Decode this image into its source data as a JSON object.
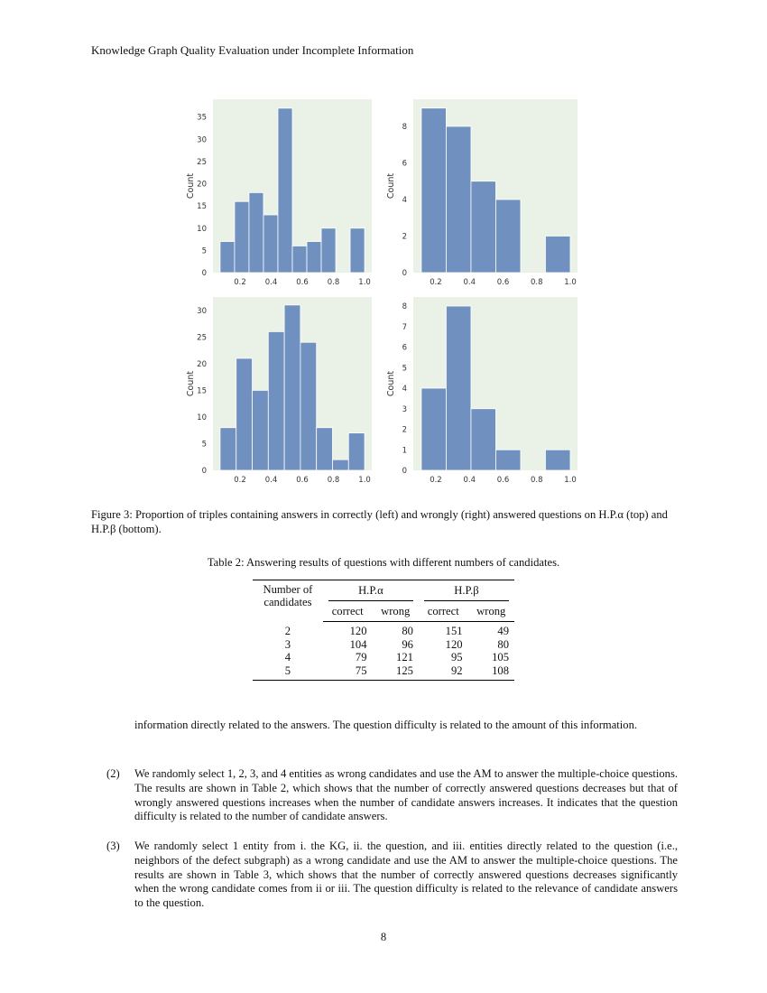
{
  "header": {
    "running_title": "Knowledge Graph Quality Evaluation under Incomplete Information"
  },
  "chart_data": [
    {
      "type": "bar",
      "panel": "top-left",
      "ylabel": "Count",
      "xlim": [
        0.026,
        1.046
      ],
      "ylim": [
        0,
        39
      ],
      "x_ticks": [
        "0.2",
        "0.4",
        "0.6",
        "0.8",
        "1.0"
      ],
      "y_ticks": [
        "0",
        "5",
        "10",
        "15",
        "20",
        "25",
        "30",
        "35"
      ],
      "bin_range": [
        0.072,
        1.0
      ],
      "counts": [
        7,
        16,
        18,
        13,
        37,
        6,
        7,
        10,
        0,
        10
      ],
      "grid": false,
      "background": "#eaf2e8",
      "bar_color": "#7090bf"
    },
    {
      "type": "bar",
      "panel": "top-right",
      "ylabel": "Count",
      "xlim": [
        0.066,
        1.043
      ],
      "ylim": [
        0,
        9.48
      ],
      "x_ticks": [
        "0.2",
        "0.4",
        "0.6",
        "0.8",
        "1.0"
      ],
      "y_ticks": [
        "0",
        "2",
        "4",
        "6",
        "8"
      ],
      "bin_range": [
        0.114,
        1.0
      ],
      "counts": [
        9,
        8,
        5,
        4,
        0,
        2
      ],
      "grid": false,
      "background": "#eaf2e8",
      "bar_color": "#7090bf"
    },
    {
      "type": "bar",
      "panel": "bottom-left",
      "ylabel": "Count",
      "xlim": [
        0.026,
        1.046
      ],
      "ylim": [
        0,
        32.5
      ],
      "x_ticks": [
        "0.2",
        "0.4",
        "0.6",
        "0.8",
        "1.0"
      ],
      "y_ticks": [
        "0",
        "5",
        "10",
        "15",
        "20",
        "25",
        "30"
      ],
      "bin_range": [
        0.072,
        1.0
      ],
      "counts": [
        8,
        21,
        15,
        26,
        31,
        24,
        8,
        2,
        7
      ],
      "grid": false,
      "background": "#eaf2e8",
      "bar_color": "#7090bf"
    },
    {
      "type": "bar",
      "panel": "bottom-right",
      "ylabel": "Count",
      "xlim": [
        0.066,
        1.043
      ],
      "ylim": [
        0,
        8.44
      ],
      "x_ticks": [
        "0.2",
        "0.4",
        "0.6",
        "0.8",
        "1.0"
      ],
      "y_ticks": [
        "0",
        "1",
        "2",
        "3",
        "4",
        "5",
        "6",
        "7",
        "8"
      ],
      "bin_range": [
        0.114,
        1.0
      ],
      "counts": [
        4,
        8,
        3,
        1,
        0,
        1
      ],
      "grid": false,
      "background": "#eaf2e8",
      "bar_color": "#7090bf"
    }
  ],
  "figure": {
    "caption": "Figure 3: Proportion of triples containing answers in correctly (left) and wrongly (right) answered questions on H.P.α (top) and H.P.β (bottom)."
  },
  "table": {
    "caption": "Table 2: Answering results of questions with different numbers of candidates.",
    "col0_header_line1": "Number of",
    "col0_header_line2": "candidates",
    "groups": [
      "H.P.α",
      "H.P.β"
    ],
    "subheaders": [
      "correct",
      "wrong",
      "correct",
      "wrong"
    ],
    "rows": [
      [
        "2",
        "120",
        "80",
        "151",
        "49"
      ],
      [
        "3",
        "104",
        "96",
        "120",
        "80"
      ],
      [
        "4",
        "79",
        "121",
        "95",
        "105"
      ],
      [
        "5",
        "75",
        "125",
        "92",
        "108"
      ]
    ]
  },
  "body": {
    "p1": "information directly related to the answers. The question difficulty is related to the amount of this information.",
    "items": [
      {
        "num": "(2)",
        "text": "We randomly select 1, 2, 3, and 4 entities as wrong candidates and use the AM to answer the multiple-choice questions. The results are shown in Table 2, which shows that the number of correctly answered questions decreases but that of wrongly answered questions increases when the number of candidate answers increases. It indicates that the question difficulty is related to the number of candidate answers."
      },
      {
        "num": "(3)",
        "text": "We randomly select 1 entity from i. the KG, ii. the question, and iii. entities directly related to the question (i.e., neighbors of the defect subgraph) as a wrong candidate and use the AM to answer the multiple-choice questions. The results are shown in Table 3, which shows that the number of correctly answered questions decreases significantly when the wrong candidate comes from ii or iii. The question difficulty is related to the relevance of candidate answers to the question."
      }
    ]
  },
  "page_number": "8"
}
